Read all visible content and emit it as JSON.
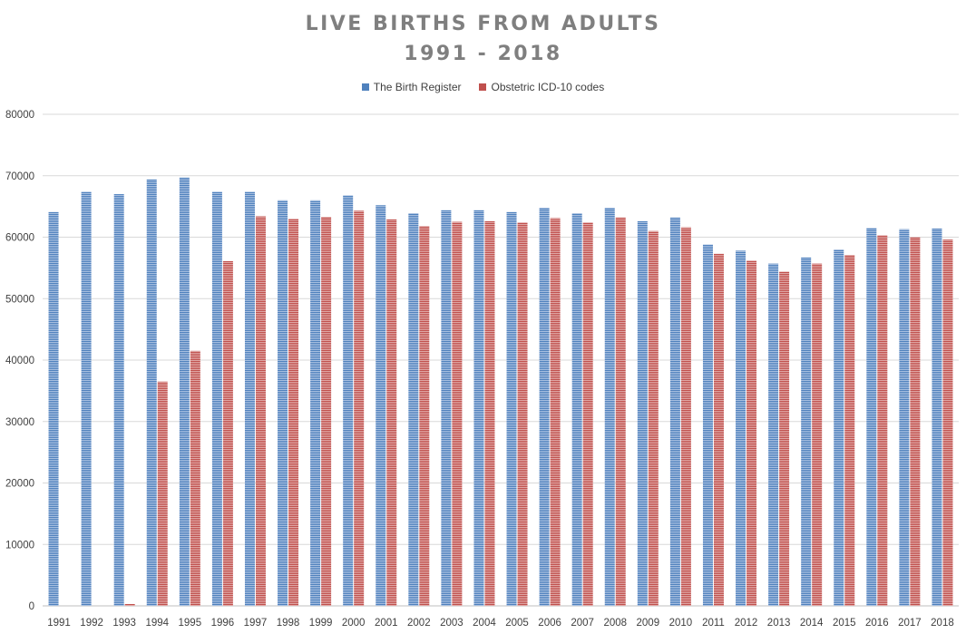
{
  "chart_data": {
    "type": "bar",
    "title": "LIVE BIRTHS FROM ADULTS",
    "subtitle": "1991 - 2018",
    "xlabel": "",
    "ylabel": "",
    "ylim": [
      0,
      80000
    ],
    "yticks": [
      "0",
      "10000",
      "20000",
      "30000",
      "40000",
      "50000",
      "60000",
      "70000",
      "80000"
    ],
    "grid": true,
    "legend_position": "top",
    "categories": [
      "1991",
      "1992",
      "1993",
      "1994",
      "1995",
      "1996",
      "1997",
      "1998",
      "1999",
      "2000",
      "2001",
      "2002",
      "2003",
      "2004",
      "2005",
      "2006",
      "2007",
      "2008",
      "2009",
      "2010",
      "2011",
      "2012",
      "2013",
      "2014",
      "2015",
      "2016",
      "2017",
      "2018"
    ],
    "series": [
      {
        "name": "The Birth Register",
        "color": "#4f81bd",
        "values": [
          64100,
          67400,
          67000,
          69400,
          69700,
          67400,
          67400,
          66000,
          66000,
          66800,
          65200,
          63900,
          64400,
          64400,
          64100,
          64800,
          63900,
          64800,
          62600,
          63200,
          58800,
          57800,
          55700,
          56700,
          58000,
          61500,
          61300,
          61400
        ]
      },
      {
        "name": "Obstetric ICD-10 codes",
        "color": "#c0504d",
        "values": [
          0,
          0,
          300,
          36500,
          41500,
          56100,
          63400,
          63000,
          63300,
          64300,
          62900,
          61800,
          62500,
          62600,
          62400,
          63100,
          62400,
          63200,
          61000,
          61600,
          57300,
          56200,
          54400,
          55700,
          57100,
          60300,
          60000,
          59600
        ]
      }
    ]
  }
}
